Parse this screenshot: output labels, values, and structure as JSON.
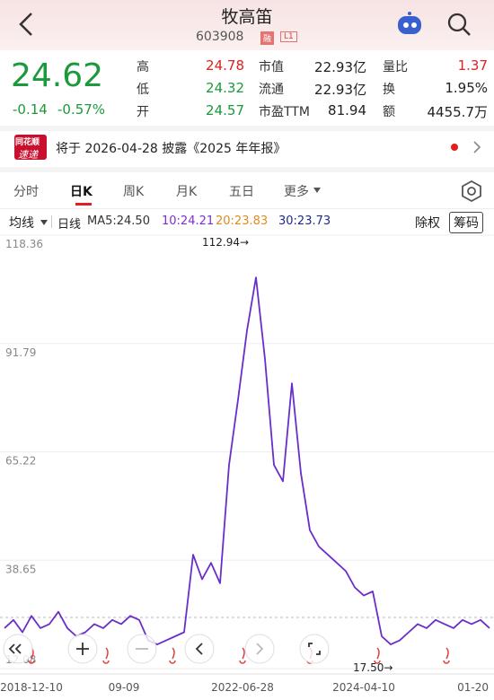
{
  "header": {
    "title": "牧高笛",
    "code": "603908",
    "badges": [
      "融",
      "L1"
    ]
  },
  "quote": {
    "price": "24.62",
    "change": "-0.14",
    "change_pct": "-0.57%",
    "stats": [
      {
        "label": "高",
        "value": "24.78",
        "color": "#e02020"
      },
      {
        "label": "市值",
        "value": "22.93亿",
        "color": "#222222"
      },
      {
        "label": "量比",
        "value": "1.37",
        "color": "#e02020"
      },
      {
        "label": "低",
        "value": "24.32",
        "color": "#1a9a3a"
      },
      {
        "label": "流通",
        "value": "22.93亿",
        "color": "#222222"
      },
      {
        "label": "换",
        "value": "1.95%",
        "color": "#222222"
      },
      {
        "label": "开",
        "value": "24.57",
        "color": "#1a9a3a"
      },
      {
        "label": "市盈TTM",
        "value": "81.94",
        "color": "#222222"
      },
      {
        "label": "额",
        "value": "4455.7万",
        "color": "#222222"
      }
    ]
  },
  "notice": {
    "logo": [
      "同花顺",
      "速递"
    ],
    "text": "将于 2026-04-28 披露《2025 年年报》"
  },
  "tabs": [
    "分时",
    "日K",
    "周K",
    "月K",
    "五日",
    "更多"
  ],
  "indicators": {
    "menu": "均线",
    "period": "日线",
    "ma": [
      {
        "text": "MA5:24.50",
        "color": "#333333"
      },
      {
        "text": "10:24.21",
        "color": "#7b2fd0"
      },
      {
        "text": "20:23.83",
        "color": "#e08a1e"
      },
      {
        "text": "30:23.73",
        "color": "#1f2a80"
      }
    ],
    "actions": [
      "除权",
      "筹码"
    ]
  },
  "chart_data": {
    "type": "line",
    "ylim": [
      12.08,
      118.36
    ],
    "yticks": [
      118.36,
      91.79,
      65.22,
      38.65,
      12.08
    ],
    "color": "#6a2ec8",
    "reference": 24.62,
    "values": [
      22,
      24,
      21,
      25,
      22,
      23,
      26,
      22,
      20,
      21,
      23,
      22,
      24,
      23,
      25,
      24,
      19,
      18,
      19,
      20,
      21,
      40,
      34,
      38,
      33,
      62,
      78,
      95,
      108,
      88,
      62,
      58,
      82,
      60,
      46,
      42,
      40,
      38,
      36,
      32,
      30,
      31,
      20,
      18,
      19,
      21,
      23,
      22,
      24,
      23,
      22,
      24,
      23,
      24,
      22
    ],
    "annotations": [
      "112.94→",
      "17.50→"
    ],
    "x_labels": [
      "2018-12-10",
      "09-09",
      "2022-06-28",
      "2024-04-10",
      "01-20"
    ]
  }
}
